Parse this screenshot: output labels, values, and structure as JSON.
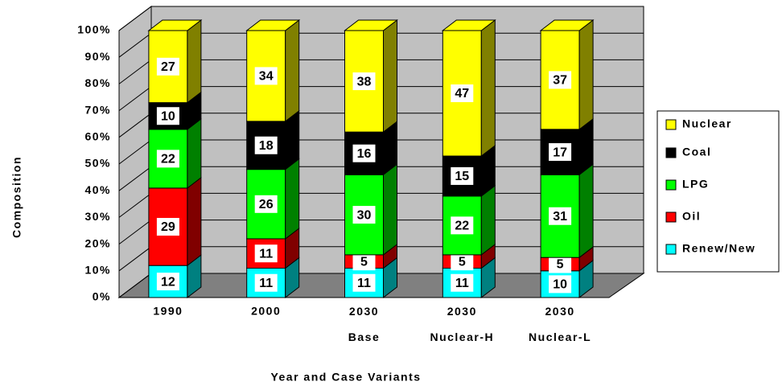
{
  "chart_data": {
    "type": "stacked_bar_3d",
    "xlabel": "Year and Case Variants",
    "ylabel": "Composition",
    "categories": [
      "1990",
      "2000",
      "2030 Base",
      "2030 Nuclear-H",
      "2030 Nuclear-L"
    ],
    "series": [
      {
        "name": "Renew/New",
        "color": "#00ffff",
        "values": [
          12,
          11,
          11,
          11,
          10
        ]
      },
      {
        "name": "Oil",
        "color": "#ff0000",
        "values": [
          29,
          11,
          5,
          5,
          5
        ]
      },
      {
        "name": "LPG",
        "color": "#00ff00",
        "values": [
          22,
          26,
          30,
          22,
          31
        ]
      },
      {
        "name": "Coal",
        "color": "#000000",
        "values": [
          10,
          18,
          16,
          15,
          17
        ]
      },
      {
        "name": "Nuclear",
        "color": "#ffff00",
        "values": [
          27,
          34,
          38,
          47,
          37
        ]
      }
    ],
    "ylim": [
      0,
      100
    ],
    "yticks": [
      {
        "value": 0,
        "label": "0%"
      },
      {
        "value": 10,
        "label": "10%"
      },
      {
        "value": 20,
        "label": "20%"
      },
      {
        "value": 30,
        "label": "30%"
      },
      {
        "value": 40,
        "label": "40%"
      },
      {
        "value": 50,
        "label": "50%"
      },
      {
        "value": 60,
        "label": "60%"
      },
      {
        "value": 70,
        "label": "70%"
      },
      {
        "value": 80,
        "label": "80%"
      },
      {
        "value": 90,
        "label": "90%"
      },
      {
        "value": 100,
        "label": "100%"
      }
    ],
    "grid": true,
    "legend": "right"
  }
}
